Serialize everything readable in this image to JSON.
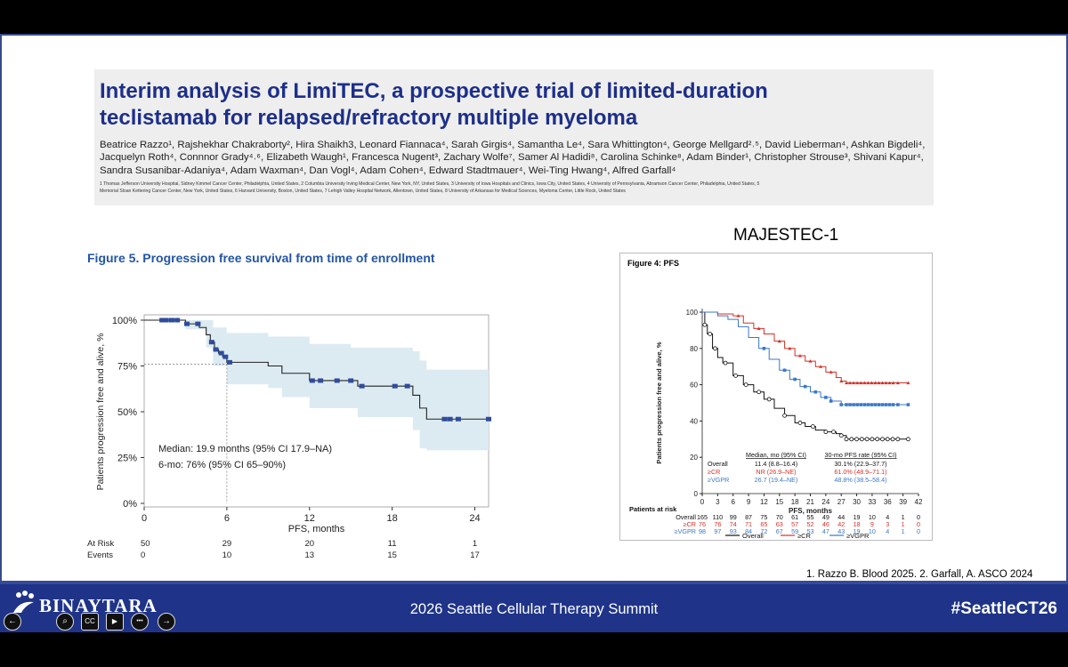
{
  "slide": {
    "title_line1": "Interim analysis of LimiTEC, a prospective trial of limited-duration",
    "title_line2": "teclistamab for relapsed/refractory multiple myeloma",
    "authors_line1": "Beatrice Razzo¹, Rajshekhar Chakraborty², Hira Shaikh3, Leonard Fiannaca⁴, Sarah Girgis⁴, Samantha Le⁴, Sara Whittington⁴, George Mellgard²˒⁵, David Lieberman⁴, Ashkan Bigdeli⁴,",
    "authors_line2": "Jacquelyn Roth⁴, Connnor Grady⁴˒⁶, Elizabeth Waugh¹, Francesca Nugent³, Zachary Wolfe⁷, Samer Al Hadidi⁸, Carolina Schinke⁸, Adam Binder¹, Christopher Strouse³, Shivani Kapur⁴,",
    "authors_line3": "Sandra Susanibar-Adaniya⁴, Adam Waxman⁴, Dan Vogl⁴, Adam Cohen⁴, Edward Stadtmauer⁴, Wei-Ting Hwang⁴, Alfred Garfall⁴",
    "affiliations_line1": "1 Thomas Jefferson University Hospital, Sidney Kimmel Cancer Center, Philadelphia, United States, 2 Columbia University Irving Medical Center, New York, NY, United States, 3 University of Iowa Hospitals and Clinics, Iowa City, United States, 4 University of Pennsylvania, Abramson Cancer Center, Philadelphia, United States, 5",
    "affiliations_line2": "Memorial Sloan Kettering Cancer Center, New York, United States, 6 Harvard University, Boston, United States, 7 Lehigh Valley Hospital Network, Allentown, United States, 8 University of Arkansas for Medical Sciences, Myeloma Center, Little Rock, United States",
    "reference": "1. Razzo B. Blood 2025. 2. Garfall, A. ASCO 2024"
  },
  "bottom_bar": {
    "logo": "BINAYTARA",
    "title": "2026 Seattle Cellular Therapy Summit",
    "hashtag": "#SeattleCT26",
    "controls": [
      "back-icon",
      "search-icon",
      "cc-icon",
      "camera-icon",
      "more-icon",
      "forward-icon"
    ],
    "control_glyphs": [
      "←",
      "⌕",
      "CC",
      "▶",
      "•••",
      "→"
    ]
  },
  "chart_data": [
    {
      "type": "line",
      "title": "Figure 5. Progression free survival from time of enrollment",
      "xlabel": "PFS, months",
      "ylabel": "Patients progression free and alive, %",
      "xlim": [
        0,
        25
      ],
      "ylim": [
        0,
        100
      ],
      "x_ticks": [
        "0",
        "6",
        "12",
        "18",
        "24"
      ],
      "y_ticks": [
        "0%",
        "25%",
        "50%",
        "75%",
        "100%"
      ],
      "series": [
        {
          "points": [
            [
              0,
              100
            ],
            [
              1,
              100
            ],
            [
              2,
              100
            ],
            [
              3,
              98
            ],
            [
              4,
              96
            ],
            [
              4.5,
              92
            ],
            [
              4.8,
              88
            ],
            [
              5.1,
              84
            ],
            [
              5.4,
              82
            ],
            [
              5.7,
              80
            ],
            [
              6,
              77
            ],
            [
              8.5,
              77
            ],
            [
              9,
              75
            ],
            [
              10,
              71
            ],
            [
              12,
              67
            ],
            [
              14,
              67
            ],
            [
              15,
              67
            ],
            [
              15.5,
              64
            ],
            [
              18,
              64
            ],
            [
              19.5,
              59
            ],
            [
              20,
              52
            ],
            [
              20.5,
              46
            ],
            [
              25,
              46
            ]
          ],
          "ci_upper": [
            [
              0,
              100
            ],
            [
              3,
              100
            ],
            [
              5,
              96
            ],
            [
              6,
              93
            ],
            [
              8.5,
              93
            ],
            [
              9,
              91
            ],
            [
              12,
              87
            ],
            [
              14.5,
              87
            ],
            [
              15,
              85
            ],
            [
              19.5,
              83
            ],
            [
              20,
              78
            ],
            [
              20.5,
              73
            ],
            [
              25,
              73
            ]
          ],
          "ci_lower": [
            [
              0,
              100
            ],
            [
              3,
              95
            ],
            [
              4.5,
              85
            ],
            [
              5,
              75
            ],
            [
              6,
              65
            ],
            [
              8.5,
              65
            ],
            [
              9,
              63
            ],
            [
              10,
              58
            ],
            [
              12,
              52
            ],
            [
              15,
              52
            ],
            [
              15.5,
              47
            ],
            [
              19.5,
              40
            ],
            [
              20,
              30
            ],
            [
              20.5,
              29
            ],
            [
              25,
              29
            ]
          ],
          "censor_x": [
            1.3,
            1.6,
            2.0,
            2.4,
            3.1,
            3.9,
            4.9,
            5.2,
            5.6,
            5.9,
            6.2,
            12.2,
            12.8,
            14.0,
            15.0,
            15.8,
            18.2,
            19.1,
            21.8,
            22.2,
            22.8,
            25.0
          ]
        }
      ],
      "annotations": [
        "Median: 19.9 months (95% CI 17.9–NA)",
        "6-mo: 76% (95% CI 65–90%)"
      ],
      "risk_table": {
        "rows": [
          {
            "label": "At Risk",
            "values": [
              "50",
              "29",
              "20",
              "11",
              "1"
            ]
          },
          {
            "label": "Events",
            "values": [
              "0",
              "10",
              "13",
              "15",
              "17"
            ]
          }
        ]
      }
    },
    {
      "type": "line",
      "title": "MAJESTEC-1",
      "subtitle": "Figure 4: PFS",
      "xlabel": "PFS, months",
      "ylabel": "Patients progression free and alive, %",
      "xlim": [
        0,
        42
      ],
      "ylim": [
        0,
        100
      ],
      "x_ticks": [
        "0",
        "3",
        "6",
        "9",
        "12",
        "15",
        "18",
        "21",
        "24",
        "27",
        "30",
        "33",
        "36",
        "39",
        "42"
      ],
      "y_ticks": [
        "0",
        "20",
        "40",
        "60",
        "80",
        "100"
      ],
      "series": [
        {
          "name": "Overall",
          "color": "#111111",
          "points": [
            [
              0,
              100
            ],
            [
              0.5,
              93
            ],
            [
              1,
              88
            ],
            [
              2,
              80
            ],
            [
              3,
              75
            ],
            [
              4,
              72
            ],
            [
              6,
              65
            ],
            [
              8,
              60
            ],
            [
              10,
              56
            ],
            [
              12,
              52
            ],
            [
              14,
              47
            ],
            [
              16,
              43
            ],
            [
              18,
              39
            ],
            [
              20,
              37
            ],
            [
              22,
              35
            ],
            [
              24,
              34
            ],
            [
              26,
              33
            ],
            [
              27,
              32
            ],
            [
              28,
              30
            ],
            [
              30,
              30
            ],
            [
              33,
              30
            ],
            [
              36,
              30
            ],
            [
              39,
              30
            ],
            [
              40,
              30
            ]
          ],
          "markers_x": [
            0.5,
            1.5,
            2.5,
            4.5,
            6.5,
            8.5,
            11,
            13,
            16,
            19,
            21.5,
            24,
            25.5,
            27,
            28,
            29,
            30,
            31,
            32,
            33,
            34,
            35,
            36,
            37,
            38,
            40
          ]
        },
        {
          "name": "≥CR",
          "color": "#d73027",
          "points": [
            [
              0,
              100
            ],
            [
              3,
              99
            ],
            [
              6,
              98
            ],
            [
              8,
              94
            ],
            [
              10,
              91
            ],
            [
              12,
              88
            ],
            [
              14,
              84
            ],
            [
              16,
              80
            ],
            [
              18,
              76
            ],
            [
              20,
              73
            ],
            [
              22,
              70
            ],
            [
              24,
              67
            ],
            [
              26,
              64
            ],
            [
              27,
              62
            ],
            [
              28,
              61
            ],
            [
              30,
              61
            ],
            [
              33,
              61
            ],
            [
              36,
              61
            ],
            [
              40,
              61
            ]
          ],
          "markers_x": [
            7,
            11,
            15,
            17,
            19,
            21,
            23,
            25,
            27,
            28,
            28.7,
            29.4,
            30.1,
            30.8,
            31.5,
            32.2,
            32.9,
            33.6,
            34.3,
            35,
            35.7,
            36.4,
            37.1,
            38,
            40
          ]
        },
        {
          "name": "≥VGPR",
          "color": "#3a78c9",
          "points": [
            [
              0,
              100
            ],
            [
              3,
              98
            ],
            [
              5,
              96
            ],
            [
              7,
              92
            ],
            [
              9,
              86
            ],
            [
              11,
              80
            ],
            [
              13,
              74
            ],
            [
              15,
              68
            ],
            [
              17,
              63
            ],
            [
              19,
              59
            ],
            [
              21,
              56
            ],
            [
              23,
              53
            ],
            [
              25,
              51
            ],
            [
              27,
              49
            ],
            [
              30,
              49
            ],
            [
              33,
              49
            ],
            [
              36,
              49
            ],
            [
              40,
              49
            ]
          ],
          "markers_x": [
            12,
            16,
            18,
            20,
            22,
            24,
            25,
            27,
            28,
            28.7,
            29.4,
            30.1,
            30.8,
            31.5,
            32.2,
            32.9,
            33.6,
            34.3,
            35,
            35.7,
            36.4,
            37.1,
            38,
            40
          ]
        }
      ],
      "summary_table": {
        "headers": [
          "",
          "Median, mo (95% CI)",
          "30-mo PFS rate (95% CI)"
        ],
        "rows": [
          [
            "Overall",
            "11.4 (8.8–16.4)",
            "30.1% (22.9–37.7)"
          ],
          [
            "≥CR",
            "NR (26.9–NE)",
            "61.0% (48.9–71.1)"
          ],
          [
            "≥VGPR",
            "26.7 (19.4–NE)",
            "48.8% (38.5–58.4)"
          ]
        ]
      },
      "risk_table": {
        "title": "Patients at risk",
        "rows": [
          {
            "label": "Overall",
            "values": [
              "165",
              "110",
              "99",
              "87",
              "75",
              "70",
              "61",
              "55",
              "49",
              "44",
              "19",
              "10",
              "4",
              "1",
              "0"
            ]
          },
          {
            "label": "≥CR",
            "values": [
              "76",
              "76",
              "74",
              "71",
              "65",
              "63",
              "57",
              "52",
              "46",
              "42",
              "18",
              "9",
              "3",
              "1",
              "0"
            ]
          },
          {
            "label": "≥VGPR",
            "values": [
              "98",
              "97",
              "93",
              "84",
              "72",
              "67",
              "59",
              "53",
              "47",
              "43",
              "19",
              "10",
              "4",
              "1",
              "0"
            ]
          }
        ]
      },
      "legend_labels": [
        "Overall",
        "≥CR",
        "≥VGPR"
      ]
    }
  ]
}
